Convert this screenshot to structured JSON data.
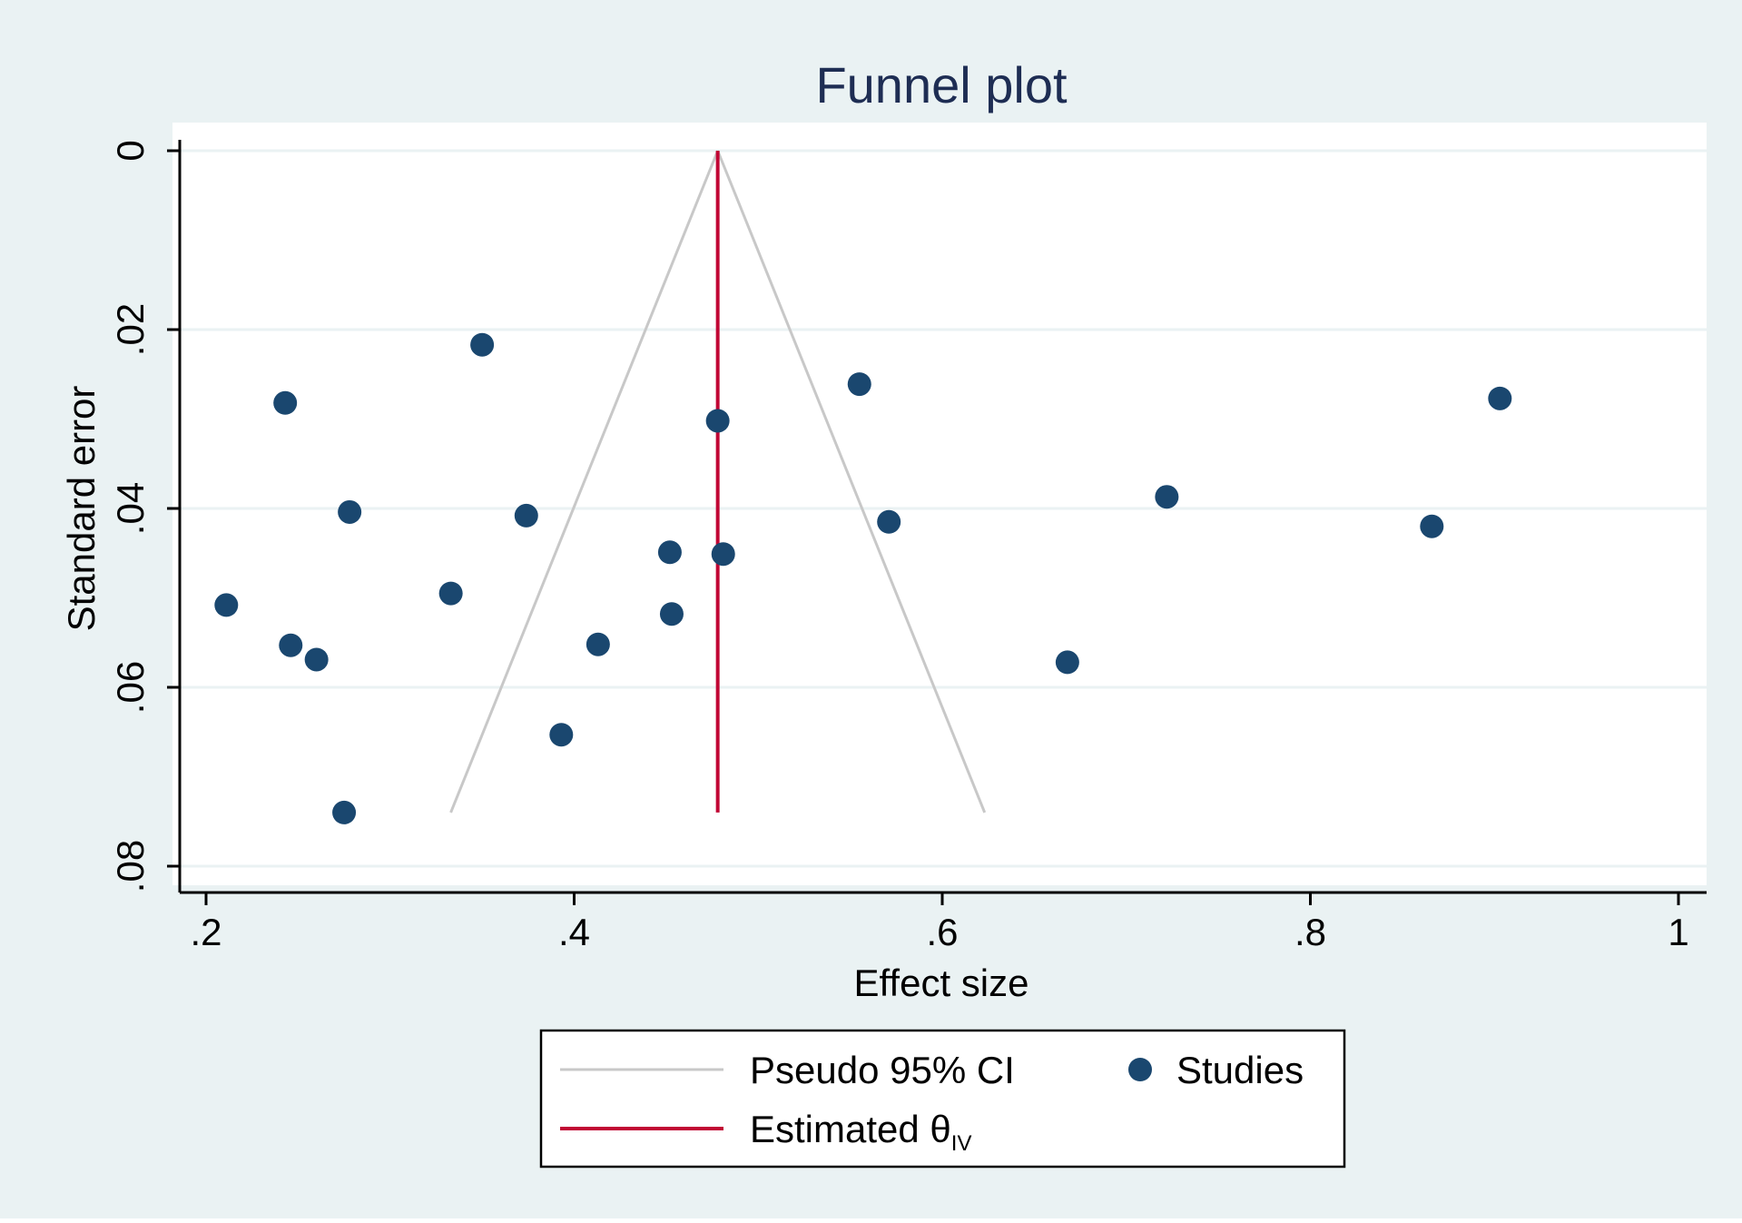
{
  "chart_data": {
    "type": "scatter",
    "title": "Funnel plot",
    "xlabel": "Effect size",
    "ylabel": "Standard error",
    "xlim": [
      0.2,
      1.0
    ],
    "ylim": [
      0,
      0.08
    ],
    "y_inverted": true,
    "grid": "horizontal",
    "xticks": [
      0.2,
      0.4,
      0.6,
      0.8,
      1.0
    ],
    "xtick_labels": [
      ".2",
      ".4",
      ".6",
      ".8",
      "1"
    ],
    "yticks": [
      0,
      0.02,
      0.04,
      0.06,
      0.08
    ],
    "ytick_labels": [
      "0",
      ".02",
      ".04",
      ".06",
      ".08"
    ],
    "estimate": 0.478,
    "ci_max_se": 0.074,
    "legend_position": "bottom",
    "legend": [
      {
        "label": "Pseudo 95% CI",
        "kind": "line",
        "color": "#c8c8c8"
      },
      {
        "label": "Studies",
        "kind": "marker",
        "color": "#1a476f"
      },
      {
        "label": "Estimated θ",
        "subscript": "IV",
        "kind": "line",
        "color": "#c10534"
      }
    ],
    "series": [
      {
        "name": "Studies",
        "color": "#1a476f",
        "points": [
          {
            "x": 0.35,
            "y": 0.0217
          },
          {
            "x": 0.243,
            "y": 0.0282
          },
          {
            "x": 0.555,
            "y": 0.0261
          },
          {
            "x": 0.903,
            "y": 0.0277
          },
          {
            "x": 0.478,
            "y": 0.0302
          },
          {
            "x": 0.278,
            "y": 0.0404
          },
          {
            "x": 0.374,
            "y": 0.0408
          },
          {
            "x": 0.571,
            "y": 0.0415
          },
          {
            "x": 0.722,
            "y": 0.0387
          },
          {
            "x": 0.866,
            "y": 0.042
          },
          {
            "x": 0.452,
            "y": 0.0449
          },
          {
            "x": 0.481,
            "y": 0.0451
          },
          {
            "x": 0.333,
            "y": 0.0495
          },
          {
            "x": 0.211,
            "y": 0.0508
          },
          {
            "x": 0.453,
            "y": 0.0518
          },
          {
            "x": 0.246,
            "y": 0.0553
          },
          {
            "x": 0.26,
            "y": 0.0569
          },
          {
            "x": 0.413,
            "y": 0.0552
          },
          {
            "x": 0.668,
            "y": 0.0572
          },
          {
            "x": 0.393,
            "y": 0.0653
          },
          {
            "x": 0.275,
            "y": 0.074
          }
        ]
      }
    ]
  },
  "colors": {
    "background": "#eaf2f3",
    "plot_area": "#ffffff",
    "grid": "#eaf2f3",
    "axis": "#000000",
    "title": "#1e2d53",
    "ci_line": "#c8c8c8",
    "estimate_line": "#c10534",
    "marker": "#1a476f"
  }
}
